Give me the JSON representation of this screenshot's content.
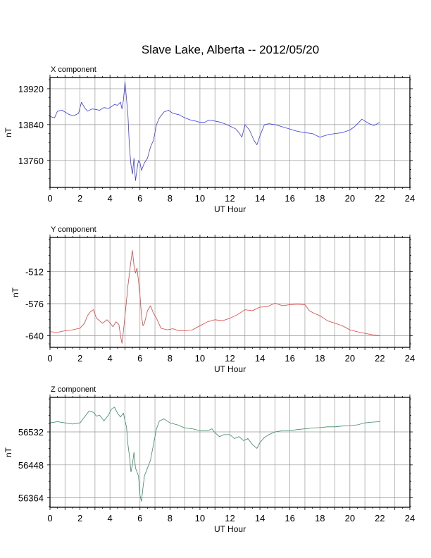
{
  "chart_data": [
    {
      "type": "line",
      "title": "Slave Lake, Alberta -- 2012/05/20",
      "panel_label": "X component",
      "xlabel": "UT Hour",
      "ylabel": "nT",
      "xlim": [
        0,
        24
      ],
      "ylim": [
        13700,
        13945
      ],
      "x_ticks": [
        0,
        2,
        4,
        6,
        8,
        10,
        12,
        14,
        16,
        18,
        20,
        22,
        24
      ],
      "y_ticks": [
        13760,
        13840,
        13920
      ],
      "grid": true,
      "color": "#3a3af0",
      "series": [
        {
          "x": [
            0,
            0.3,
            0.5,
            0.8,
            1.0,
            1.3,
            1.6,
            1.9,
            2.1,
            2.3,
            2.5,
            2.8,
            3.0,
            3.3,
            3.6,
            3.9,
            4.1,
            4.3,
            4.5,
            4.7,
            4.8,
            4.9,
            5.0,
            5.1,
            5.2,
            5.3,
            5.4,
            5.5,
            5.6,
            5.7,
            5.8,
            5.9,
            6.0,
            6.1,
            6.3,
            6.5,
            6.7,
            6.9,
            7.1,
            7.3,
            7.6,
            7.9,
            8.2,
            8.6,
            9.0,
            9.4,
            9.7,
            10.0,
            10.3,
            10.6,
            11.0,
            11.4,
            11.8,
            12.1,
            12.4,
            12.6,
            12.8,
            13.0,
            13.3,
            13.6,
            13.8,
            14.0,
            14.3,
            14.6,
            15.0,
            15.5,
            16.0,
            16.5,
            17.0,
            17.5,
            17.8,
            18.0,
            18.3,
            18.6,
            19.0,
            19.5,
            20.0,
            20.3,
            20.6,
            20.8,
            21.0,
            21.3,
            21.6,
            22.0
          ],
          "y": [
            13858,
            13855,
            13870,
            13872,
            13868,
            13862,
            13860,
            13865,
            13890,
            13878,
            13870,
            13875,
            13874,
            13872,
            13878,
            13876,
            13880,
            13885,
            13883,
            13890,
            13875,
            13895,
            13935,
            13898,
            13860,
            13790,
            13750,
            13730,
            13765,
            13715,
            13740,
            13760,
            13755,
            13738,
            13755,
            13765,
            13790,
            13805,
            13840,
            13855,
            13868,
            13872,
            13865,
            13862,
            13855,
            13850,
            13848,
            13845,
            13845,
            13850,
            13848,
            13845,
            13840,
            13835,
            13830,
            13822,
            13812,
            13840,
            13828,
            13805,
            13795,
            13815,
            13840,
            13842,
            13840,
            13835,
            13830,
            13825,
            13822,
            13820,
            13815,
            13812,
            13815,
            13818,
            13820,
            13822,
            13828,
            13835,
            13845,
            13852,
            13848,
            13842,
            13838,
            13845
          ]
        }
      ]
    },
    {
      "type": "line",
      "panel_label": "Y component",
      "xlabel": "UT Hour",
      "ylabel": "nT",
      "xlim": [
        0,
        24
      ],
      "ylim": [
        -663,
        -444
      ],
      "x_ticks": [
        0,
        2,
        4,
        6,
        8,
        10,
        12,
        14,
        16,
        18,
        20,
        22,
        24
      ],
      "y_ticks": [
        -512,
        -576,
        -640
      ],
      "grid": true,
      "color": "#e04040",
      "series": [
        {
          "x": [
            0,
            0.5,
            1.0,
            1.5,
            2.0,
            2.3,
            2.5,
            2.7,
            2.9,
            3.1,
            3.3,
            3.5,
            3.8,
            4.0,
            4.2,
            4.4,
            4.6,
            4.7,
            4.8,
            4.9,
            5.0,
            5.2,
            5.4,
            5.5,
            5.6,
            5.7,
            5.8,
            5.9,
            6.0,
            6.1,
            6.2,
            6.3,
            6.5,
            6.7,
            6.9,
            7.1,
            7.4,
            7.8,
            8.2,
            8.6,
            9.0,
            9.5,
            10.0,
            10.5,
            11.0,
            11.5,
            12.0,
            12.5,
            13.0,
            13.5,
            14.0,
            14.5,
            15.0,
            15.5,
            16.0,
            16.5,
            17.0,
            17.3,
            17.6,
            18.0,
            18.5,
            19.0,
            19.5,
            20.0,
            20.5,
            21.0,
            21.5,
            22.0
          ],
          "y": [
            -632,
            -633,
            -630,
            -628,
            -625,
            -615,
            -600,
            -592,
            -588,
            -605,
            -610,
            -615,
            -608,
            -614,
            -622,
            -612,
            -618,
            -640,
            -655,
            -630,
            -600,
            -540,
            -490,
            -470,
            -500,
            -515,
            -505,
            -530,
            -560,
            -600,
            -620,
            -615,
            -590,
            -580,
            -595,
            -605,
            -625,
            -628,
            -626,
            -630,
            -630,
            -628,
            -620,
            -612,
            -608,
            -610,
            -605,
            -598,
            -588,
            -590,
            -583,
            -582,
            -575,
            -580,
            -578,
            -577,
            -578,
            -590,
            -595,
            -600,
            -610,
            -615,
            -620,
            -628,
            -632,
            -635,
            -638,
            -640
          ]
        }
      ]
    },
    {
      "type": "line",
      "panel_label": "Z component",
      "xlabel": "UT Hour",
      "ylabel": "nT",
      "xlim": [
        0,
        24
      ],
      "ylim": [
        56340,
        56620
      ],
      "x_ticks": [
        0,
        2,
        4,
        6,
        8,
        10,
        12,
        14,
        16,
        18,
        20,
        22,
        24
      ],
      "y_ticks": [
        56364,
        56448,
        56532
      ],
      "grid": true,
      "color": "#3a8a60",
      "series": [
        {
          "x": [
            0,
            0.5,
            1.0,
            1.5,
            2.0,
            2.3,
            2.6,
            2.9,
            3.1,
            3.3,
            3.6,
            3.9,
            4.1,
            4.3,
            4.5,
            4.7,
            4.9,
            5.0,
            5.1,
            5.2,
            5.3,
            5.4,
            5.5,
            5.6,
            5.7,
            5.8,
            5.9,
            6.0,
            6.1,
            6.2,
            6.3,
            6.5,
            6.7,
            6.9,
            7.1,
            7.3,
            7.6,
            8.0,
            8.5,
            9.0,
            9.5,
            10.0,
            10.5,
            10.8,
            11.0,
            11.3,
            11.6,
            12.0,
            12.3,
            12.6,
            12.9,
            13.2,
            13.5,
            13.8,
            14.0,
            14.3,
            14.6,
            15.0,
            15.5,
            16.0,
            16.5,
            17.0,
            17.5,
            18.0,
            18.5,
            19.0,
            19.5,
            20.0,
            20.5,
            21.0,
            21.5,
            22.0
          ],
          "y": [
            56555,
            56558,
            56555,
            56552,
            56555,
            56570,
            56585,
            56582,
            56572,
            56575,
            56560,
            56575,
            56590,
            56595,
            56580,
            56570,
            56580,
            56560,
            56545,
            56500,
            56470,
            56430,
            56450,
            56480,
            56440,
            56430,
            56420,
            56370,
            56355,
            56390,
            56420,
            56440,
            56460,
            56500,
            56540,
            56560,
            56565,
            56555,
            56550,
            56542,
            56540,
            56535,
            56535,
            56540,
            56530,
            56520,
            56525,
            56525,
            56515,
            56520,
            56510,
            56515,
            56500,
            56490,
            56505,
            56518,
            56525,
            56532,
            56535,
            56535,
            56538,
            56540,
            56542,
            56543,
            56545,
            56545,
            56547,
            56548,
            56550,
            56555,
            56557,
            56558
          ]
        }
      ]
    }
  ]
}
